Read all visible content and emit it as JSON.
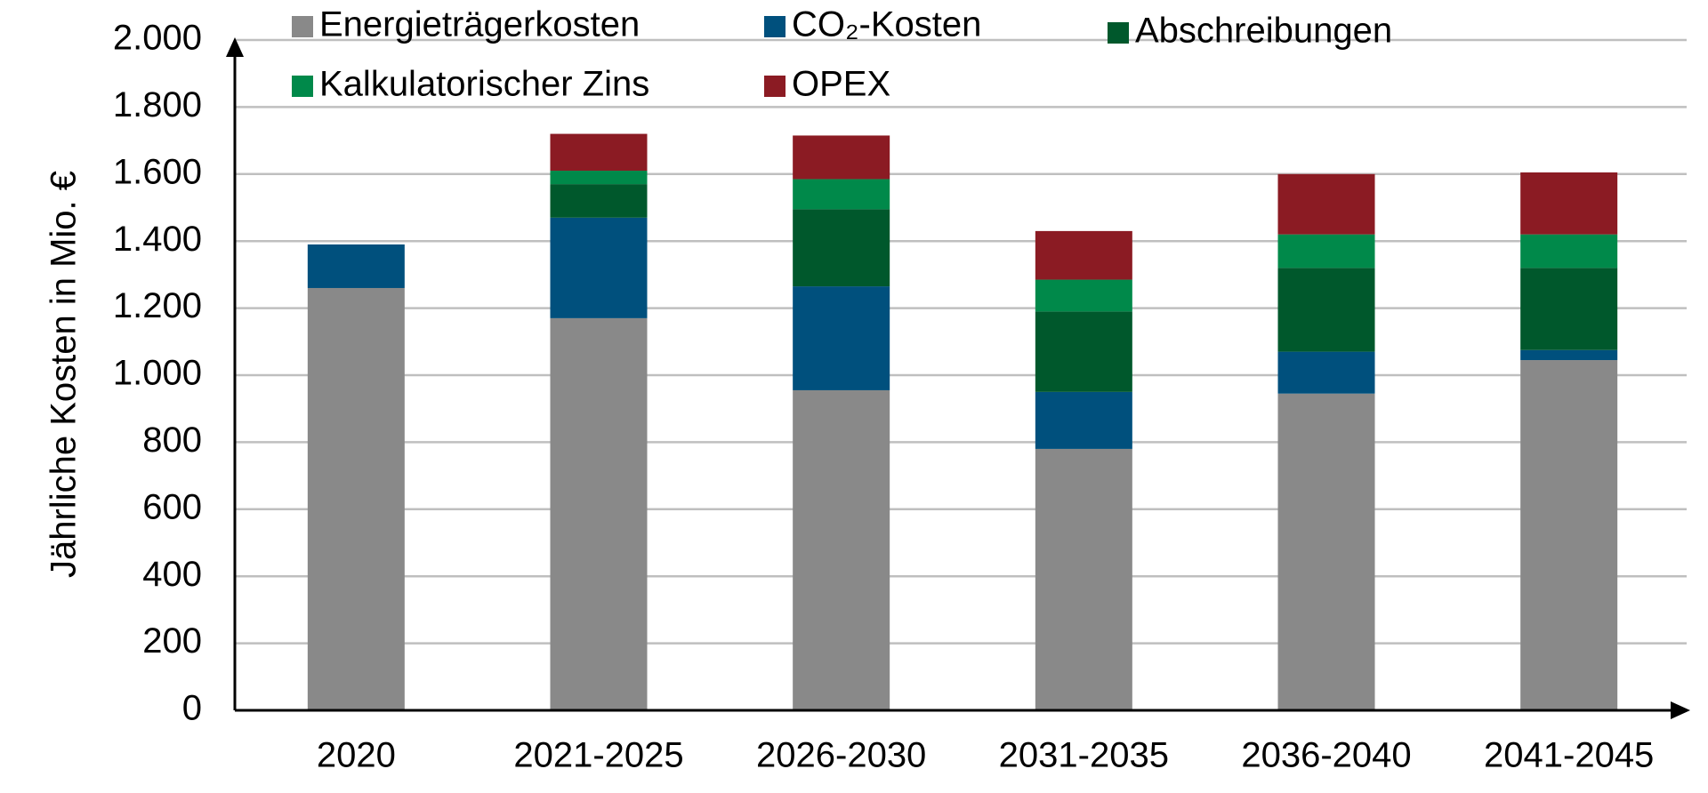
{
  "chart_data": {
    "type": "stacked_bar",
    "y_label": "Jährliche Kosten in Mio. €",
    "categories": [
      "2020",
      "2021-2025",
      "2026-2030",
      "2031-2035",
      "2036-2040",
      "2041-2045"
    ],
    "series": [
      {
        "name": "Energieträgerkosten",
        "color": "#898989",
        "values": [
          1260,
          1170,
          955,
          780,
          945,
          1045
        ]
      },
      {
        "name": "CO₂-Kosten",
        "color": "#00507d",
        "values": [
          130,
          300,
          310,
          170,
          125,
          30
        ]
      },
      {
        "name": "Abschreibungen",
        "color": "#00582c",
        "values": [
          0,
          100,
          230,
          240,
          250,
          245
        ]
      },
      {
        "name": "Kalkulatorischer Zins",
        "color": "#00894a",
        "values": [
          0,
          40,
          90,
          95,
          100,
          100
        ]
      },
      {
        "name": "OPEX",
        "color": "#8b1b23",
        "values": [
          0,
          110,
          130,
          145,
          180,
          185
        ]
      }
    ],
    "ylim": [
      0,
      2000
    ],
    "yticks": [
      0,
      200,
      400,
      600,
      800,
      {
        "value": 1000,
        "label": "1.000"
      },
      {
        "value": 1200,
        "label": "1.200"
      },
      {
        "value": 1400,
        "label": "1.400"
      },
      {
        "value": 1600,
        "label": "1.600"
      },
      {
        "value": 1800,
        "label": "1.800"
      },
      {
        "value": 2000,
        "label": "2.000"
      }
    ],
    "grid": true
  }
}
